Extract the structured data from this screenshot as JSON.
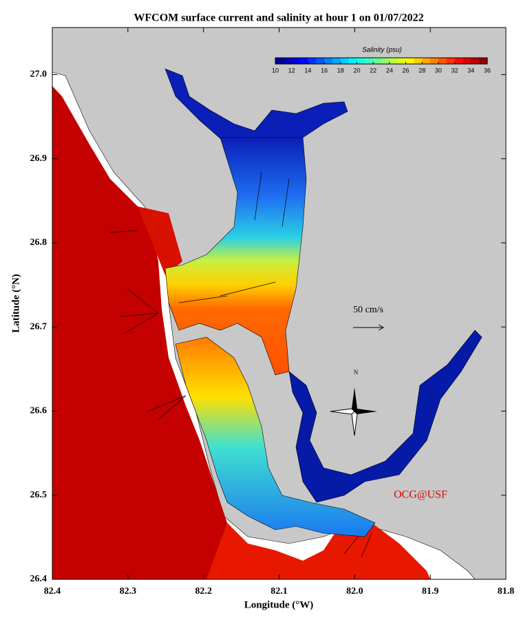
{
  "map": {
    "title": "WFCOM surface current and salinity at hour 1 on 01/07/2022",
    "x_label": "Longitude (°W)",
    "y_label": "Latitude (°N)",
    "xlim": [
      82.4,
      81.8
    ],
    "ylim": [
      26.4,
      27.056
    ],
    "xticks": [
      82.4,
      82.3,
      82.2,
      82.1,
      {
        "value": 82,
        "label": "82.0"
      },
      81.9,
      81.8
    ],
    "yticks": [
      26.4,
      26.5,
      26.6,
      26.7,
      26.8,
      26.9,
      {
        "value": 27,
        "label": "27.0"
      }
    ],
    "colorbar": {
      "title": "Salinity (psu)",
      "lim": [
        10,
        36
      ],
      "ticks": [
        10,
        12,
        14,
        16,
        18,
        20,
        22,
        24,
        26,
        28,
        30,
        32,
        34,
        36
      ]
    },
    "scale_label": "50 cm/s",
    "compass_label": "N",
    "credit": "OCG@USF"
  }
}
